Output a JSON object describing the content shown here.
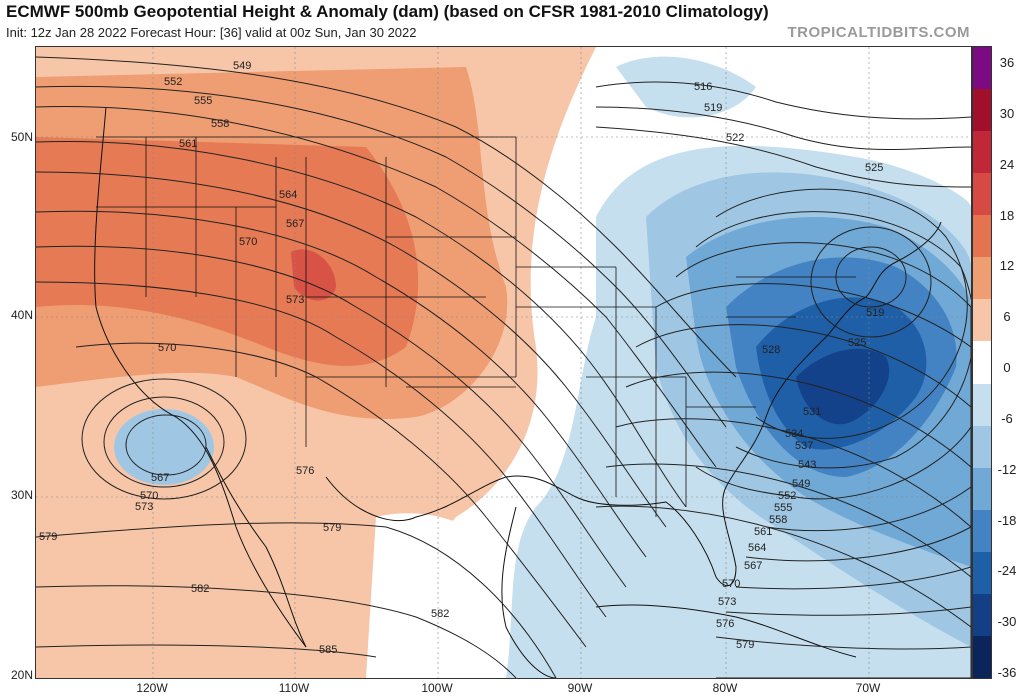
{
  "header": {
    "title": "ECMWF 500mb Geopotential Height & Anomaly (dam) (based on CFSR 1981-2010 Climatology)",
    "subtitle": "Init: 12z Jan 28 2022   Forecast Hour: [36]   valid at 00z Sun, Jan 30 2022",
    "brand": "TROPICALTIDBITS.COM"
  },
  "axes": {
    "lat_labels": [
      "50N",
      "40N",
      "30N",
      "20N"
    ],
    "lon_labels": [
      "120W",
      "110W",
      "100W",
      "90W",
      "80W",
      "70W"
    ]
  },
  "colorbar": {
    "ticks": [
      "36",
      "30",
      "24",
      "18",
      "12",
      "6",
      "0",
      "-6",
      "-12",
      "-18",
      "-24",
      "-30",
      "-36"
    ],
    "colors": [
      "#7b0a83",
      "#a0102a",
      "#c02838",
      "#d54a42",
      "#e3744f",
      "#ef9d72",
      "#f7c6a8",
      "#ffffff",
      "#c6dfee",
      "#9fc7e3",
      "#70a8d6",
      "#4383c3",
      "#1f5fa8",
      "#123f86",
      "#0b245a"
    ]
  },
  "contours": {
    "west": [
      "549",
      "552",
      "555",
      "558",
      "561",
      "564",
      "567",
      "570",
      "573"
    ],
    "low_west": [
      "567",
      "570",
      "573",
      "570"
    ],
    "south": [
      "576",
      "579",
      "579",
      "582",
      "582",
      "585"
    ],
    "north": [
      "516",
      "519",
      "522",
      "525"
    ],
    "east_low": [
      "519",
      "525",
      "528",
      "531",
      "534",
      "537",
      "543",
      "549",
      "552",
      "555",
      "558",
      "561",
      "564",
      "567",
      "570",
      "573",
      "576",
      "579"
    ]
  }
}
